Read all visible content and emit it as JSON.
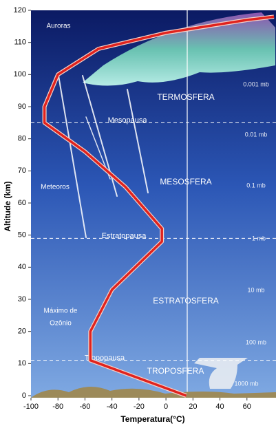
{
  "chart_data": {
    "type": "line",
    "x_label": "Temperatura(°C)",
    "y_label": "Altitude (km)",
    "x": [
      15,
      -56,
      -56,
      -40,
      -3,
      -3,
      -30,
      -60,
      -90,
      -90,
      -80,
      -50,
      0,
      60,
      80
    ],
    "values": [
      0,
      11,
      20,
      33,
      48,
      52,
      65,
      76,
      85,
      90,
      100,
      108,
      113,
      117,
      118
    ],
    "color": "#e0231e",
    "xlim": [
      -100,
      80
    ],
    "xticks": [
      -100,
      -80,
      -60,
      -40,
      -20,
      0,
      20,
      40,
      60
    ],
    "ylim": [
      0,
      120
    ],
    "yticks": [
      0,
      10,
      20,
      30,
      40,
      50,
      60,
      70,
      80,
      90,
      100,
      110,
      120
    ],
    "boundaries": [
      {
        "name": "Tropopausa",
        "altitude": 11
      },
      {
        "name": "Estratopausa",
        "altitude": 49
      },
      {
        "name": "Mesopausa",
        "altitude": 85
      }
    ],
    "layers": [
      "TROPOSFERA",
      "ESTRATOSFERA",
      "MESOSFERA",
      "TERMOSFERA"
    ],
    "annotations": [
      "Auroras",
      "Meteoros",
      "Máximo de",
      "Ozônio"
    ],
    "pressure_labels": [
      "1000 mb",
      "100 mb",
      "10 mb",
      "1 mb",
      "0.1 mb",
      "0.01 mb",
      "0.001 mb"
    ]
  }
}
